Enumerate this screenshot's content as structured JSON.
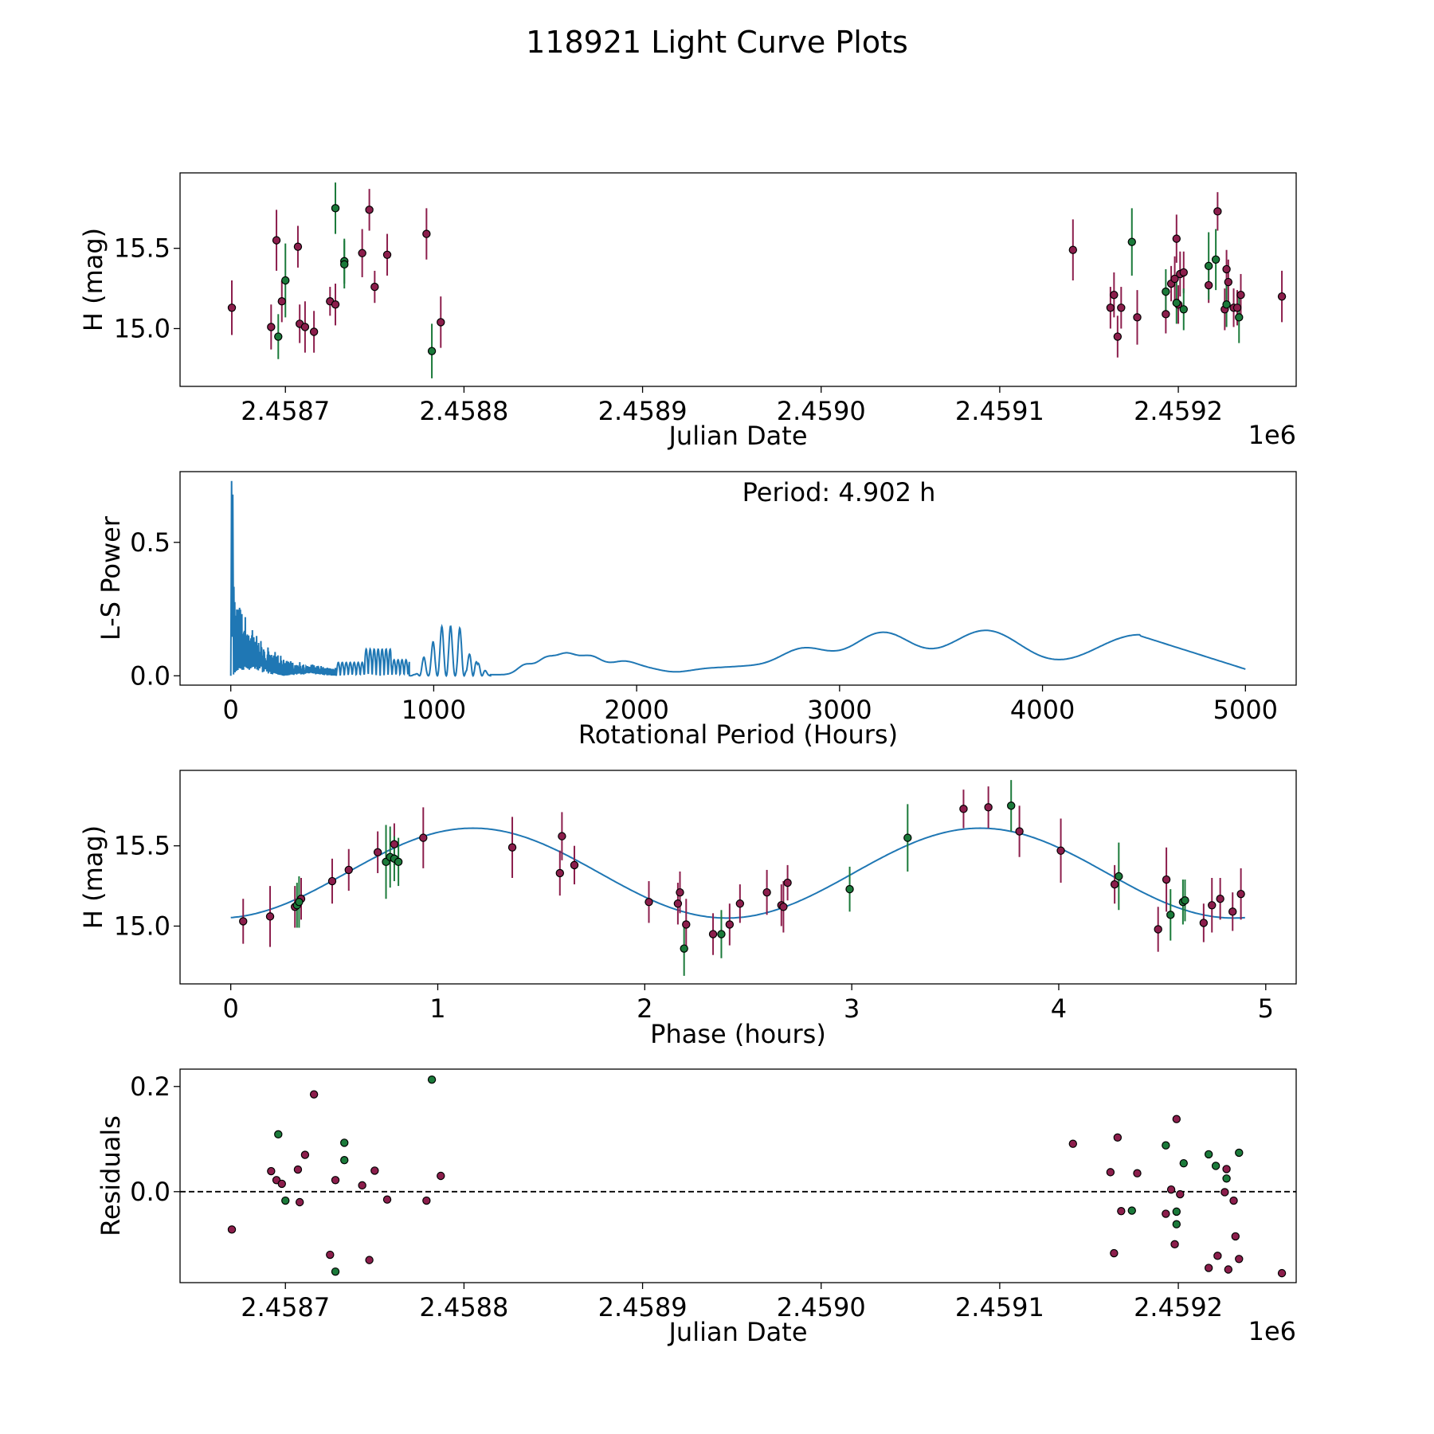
{
  "figure": {
    "title": "118921 Light Curve Plots"
  },
  "colors": {
    "maroon": "#8c1e4c",
    "green": "#1b7a3a",
    "curve": "#1f77b4",
    "edge": "#000000"
  },
  "chart_data": [
    {
      "id": "lightcurve",
      "type": "scatter",
      "title": "",
      "xlabel": "Julian Date",
      "ylabel": "H (mag)",
      "x_offset_label": "1e6",
      "xlim": [
        2458641,
        2459266
      ],
      "ylim": [
        14.64,
        15.97
      ],
      "xticks": [
        2458700,
        2458800,
        2458900,
        2459000,
        2459100,
        2459200
      ],
      "xtick_labels": [
        "2.4587",
        "2.4588",
        "2.4589",
        "2.4590",
        "2.4591",
        "2.4592"
      ],
      "yticks": [
        15.0,
        15.5
      ],
      "ytick_labels": [
        "15.0",
        "15.5"
      ],
      "series": [
        {
          "name": "maroon",
          "color": "maroon",
          "points": [
            [
              2458670,
              15.13,
              0.17
            ],
            [
              2458692,
              15.01,
              0.14
            ],
            [
              2458695,
              15.55,
              0.19
            ],
            [
              2458698,
              15.17,
              0.13
            ],
            [
              2458707,
              15.51,
              0.13
            ],
            [
              2458708,
              15.03,
              0.12
            ],
            [
              2458711,
              15.01,
              0.16
            ],
            [
              2458716,
              14.98,
              0.13
            ],
            [
              2458725,
              15.17,
              0.09
            ],
            [
              2458728,
              15.15,
              0.13
            ],
            [
              2458743,
              15.47,
              0.15
            ],
            [
              2458747,
              15.74,
              0.13
            ],
            [
              2458750,
              15.26,
              0.1
            ],
            [
              2458757,
              15.46,
              0.13
            ],
            [
              2458779,
              15.59,
              0.16
            ],
            [
              2458787,
              15.04,
              0.16
            ],
            [
              2459141,
              15.49,
              0.19
            ],
            [
              2459162,
              15.13,
              0.13
            ],
            [
              2459164,
              15.21,
              0.14
            ],
            [
              2459166,
              14.95,
              0.13
            ],
            [
              2459168,
              15.13,
              0.13
            ],
            [
              2459177,
              15.07,
              0.17
            ],
            [
              2459193,
              15.09,
              0.12
            ],
            [
              2459196,
              15.28,
              0.11
            ],
            [
              2459198,
              15.31,
              0.14
            ],
            [
              2459199,
              15.56,
              0.15
            ],
            [
              2459200,
              15.15,
              0.12
            ],
            [
              2459201,
              15.34,
              0.14
            ],
            [
              2459203,
              15.35,
              0.13
            ],
            [
              2459217,
              15.27,
              0.11
            ],
            [
              2459222,
              15.73,
              0.12
            ],
            [
              2459226,
              15.12,
              0.13
            ],
            [
              2459227,
              15.37,
              0.12
            ],
            [
              2459228,
              15.29,
              0.14
            ],
            [
              2459231,
              15.13,
              0.12
            ],
            [
              2459233,
              15.13,
              0.11
            ],
            [
              2459235,
              15.21,
              0.13
            ],
            [
              2459258,
              15.2,
              0.16
            ]
          ]
        },
        {
          "name": "green",
          "color": "green",
          "points": [
            [
              2458696,
              14.95,
              0.14
            ],
            [
              2458700,
              15.3,
              0.23
            ],
            [
              2458728,
              15.75,
              0.16
            ],
            [
              2458733,
              15.42,
              0.14
            ],
            [
              2458733,
              15.4,
              0.15
            ],
            [
              2458782,
              14.86,
              0.17
            ],
            [
              2459174,
              15.54,
              0.21
            ],
            [
              2459193,
              15.23,
              0.14
            ],
            [
              2459199,
              15.16,
              0.13
            ],
            [
              2459203,
              15.12,
              0.13
            ],
            [
              2459217,
              15.39,
              0.21
            ],
            [
              2459221,
              15.43,
              0.19
            ],
            [
              2459227,
              15.15,
              0.14
            ],
            [
              2459234,
              15.07,
              0.16
            ]
          ]
        }
      ]
    },
    {
      "id": "periodogram",
      "type": "line",
      "xlabel": "Rotational Period (Hours)",
      "ylabel": "L-S Power",
      "annotation": "Period: 4.902 h",
      "xlim": [
        -250,
        5250
      ],
      "ylim": [
        -0.035,
        0.765
      ],
      "xticks": [
        0,
        1000,
        2000,
        3000,
        4000,
        5000
      ],
      "xtick_labels": [
        "0",
        "1000",
        "2000",
        "3000",
        "4000",
        "5000"
      ],
      "yticks": [
        0.0,
        0.5
      ],
      "ytick_labels": [
        "0.0",
        "0.5"
      ],
      "x_range": [
        0,
        5000
      ],
      "peak_power": 0.73,
      "smooth_peaks": [
        [
          1450,
          0.035
        ],
        [
          1550,
          0.055
        ],
        [
          1650,
          0.07
        ],
        [
          1770,
          0.065
        ],
        [
          1930,
          0.045
        ],
        [
          2060,
          0.02
        ],
        [
          2330,
          0.018
        ],
        [
          2520,
          0.025
        ],
        [
          2820,
          0.095
        ],
        [
          3210,
          0.155
        ],
        [
          3720,
          0.165
        ],
        [
          4480,
          0.15
        ]
      ],
      "oscillation_peaks": [
        [
          950,
          0.07
        ],
        [
          1000,
          0.13
        ],
        [
          1040,
          0.185
        ],
        [
          1080,
          0.19
        ],
        [
          1130,
          0.18
        ],
        [
          1190,
          0.12
        ],
        [
          1230,
          0.06
        ]
      ],
      "end_value": [
        5000,
        0.025
      ]
    },
    {
      "id": "phasefold",
      "type": "scatter",
      "xlabel": "Phase (hours)",
      "ylabel": "H (mag)",
      "xlim": [
        -0.245,
        5.147
      ],
      "ylim": [
        14.64,
        15.97
      ],
      "xticks": [
        0,
        1,
        2,
        3,
        4,
        5
      ],
      "xtick_labels": [
        "0",
        "1",
        "2",
        "3",
        "4",
        "5"
      ],
      "yticks": [
        15.0,
        15.5
      ],
      "ytick_labels": [
        "15.0",
        "15.5"
      ],
      "model": {
        "mean": 15.33,
        "amplitude": 0.28,
        "period": 2.451,
        "peak_phase": 1.17,
        "x_range": [
          0,
          4.9
        ]
      },
      "series": [
        {
          "name": "maroon",
          "color": "maroon",
          "points": [
            [
              0.06,
              15.03,
              0.14
            ],
            [
              0.19,
              15.06,
              0.19
            ],
            [
              0.31,
              15.12,
              0.13
            ],
            [
              0.34,
              15.17,
              0.13
            ],
            [
              0.49,
              15.28,
              0.14
            ],
            [
              0.57,
              15.35,
              0.13
            ],
            [
              0.71,
              15.46,
              0.13
            ],
            [
              0.79,
              15.51,
              0.13
            ],
            [
              0.93,
              15.55,
              0.19
            ],
            [
              1.36,
              15.49,
              0.19
            ],
            [
              1.59,
              15.33,
              0.14
            ],
            [
              1.6,
              15.56,
              0.15
            ],
            [
              1.66,
              15.38,
              0.12
            ],
            [
              2.02,
              15.15,
              0.13
            ],
            [
              2.16,
              15.14,
              0.13
            ],
            [
              2.17,
              15.21,
              0.13
            ],
            [
              2.2,
              15.01,
              0.16
            ],
            [
              2.33,
              14.95,
              0.13
            ],
            [
              2.41,
              15.01,
              0.13
            ],
            [
              2.46,
              15.14,
              0.12
            ],
            [
              2.59,
              15.21,
              0.14
            ],
            [
              2.66,
              15.13,
              0.13
            ],
            [
              2.67,
              15.12,
              0.16
            ],
            [
              2.69,
              15.27,
              0.11
            ],
            [
              3.54,
              15.73,
              0.12
            ],
            [
              3.66,
              15.74,
              0.13
            ],
            [
              3.81,
              15.59,
              0.16
            ],
            [
              4.01,
              15.47,
              0.2
            ],
            [
              4.27,
              15.26,
              0.12
            ],
            [
              4.48,
              14.98,
              0.14
            ],
            [
              4.52,
              15.29,
              0.2
            ],
            [
              4.7,
              15.02,
              0.12
            ],
            [
              4.74,
              15.13,
              0.17
            ],
            [
              4.78,
              15.17,
              0.13
            ],
            [
              4.84,
              15.09,
              0.12
            ],
            [
              4.88,
              15.2,
              0.16
            ]
          ]
        },
        {
          "name": "green",
          "color": "green",
          "points": [
            [
              0.32,
              15.13,
              0.14
            ],
            [
              0.33,
              15.15,
              0.16
            ],
            [
              0.75,
              15.4,
              0.23
            ],
            [
              0.77,
              15.43,
              0.19
            ],
            [
              0.79,
              15.42,
              0.14
            ],
            [
              0.81,
              15.4,
              0.15
            ],
            [
              2.19,
              14.86,
              0.17
            ],
            [
              2.37,
              14.95,
              0.15
            ],
            [
              2.99,
              15.23,
              0.14
            ],
            [
              3.27,
              15.55,
              0.21
            ],
            [
              3.77,
              15.75,
              0.16
            ],
            [
              4.29,
              15.31,
              0.21
            ],
            [
              4.54,
              15.07,
              0.16
            ],
            [
              4.6,
              15.15,
              0.14
            ],
            [
              4.61,
              15.16,
              0.13
            ]
          ]
        }
      ]
    },
    {
      "id": "residuals",
      "type": "scatter",
      "xlabel": "Julian Date",
      "ylabel": "Residuals",
      "x_offset_label": "1e6",
      "xlim": [
        2458641,
        2459266
      ],
      "ylim": [
        -0.173,
        0.233
      ],
      "xticks": [
        2458700,
        2458800,
        2458900,
        2459000,
        2459100,
        2459200
      ],
      "xtick_labels": [
        "2.4587",
        "2.4588",
        "2.4589",
        "2.4590",
        "2.4591",
        "2.4592"
      ],
      "yticks": [
        0.0,
        0.2
      ],
      "ytick_labels": [
        "0.0",
        "0.2"
      ],
      "zero_line": 0.0,
      "series": [
        {
          "name": "maroon",
          "color": "maroon",
          "points": [
            [
              2458670,
              -0.072
            ],
            [
              2458692,
              0.039
            ],
            [
              2458695,
              0.022
            ],
            [
              2458698,
              0.015
            ],
            [
              2458707,
              0.042
            ],
            [
              2458708,
              -0.02
            ],
            [
              2458711,
              0.07
            ],
            [
              2458716,
              0.185
            ],
            [
              2458725,
              -0.12
            ],
            [
              2458728,
              0.022
            ],
            [
              2458743,
              0.012
            ],
            [
              2458747,
              -0.13
            ],
            [
              2458750,
              0.04
            ],
            [
              2458757,
              -0.015
            ],
            [
              2458779,
              -0.017
            ],
            [
              2458787,
              0.03
            ],
            [
              2459141,
              0.091
            ],
            [
              2459162,
              0.037
            ],
            [
              2459164,
              -0.117
            ],
            [
              2459166,
              0.103
            ],
            [
              2459168,
              -0.037
            ],
            [
              2459177,
              0.035
            ],
            [
              2459193,
              -0.042
            ],
            [
              2459196,
              0.004
            ],
            [
              2459198,
              -0.1
            ],
            [
              2459199,
              0.138
            ],
            [
              2459201,
              -0.005
            ],
            [
              2459217,
              -0.145
            ],
            [
              2459222,
              -0.122
            ],
            [
              2459226,
              -0.001
            ],
            [
              2459227,
              0.043
            ],
            [
              2459228,
              -0.148
            ],
            [
              2459231,
              -0.017
            ],
            [
              2459232,
              -0.085
            ],
            [
              2459234,
              -0.128
            ],
            [
              2459258,
              -0.155
            ]
          ]
        },
        {
          "name": "green",
          "color": "green",
          "points": [
            [
              2458696,
              0.109
            ],
            [
              2458700,
              -0.017
            ],
            [
              2458728,
              -0.152
            ],
            [
              2458733,
              0.093
            ],
            [
              2458733,
              0.06
            ],
            [
              2458782,
              0.213
            ],
            [
              2459174,
              -0.036
            ],
            [
              2459193,
              0.088
            ],
            [
              2459199,
              -0.038
            ],
            [
              2459199,
              -0.062
            ],
            [
              2459203,
              0.054
            ],
            [
              2459217,
              0.071
            ],
            [
              2459221,
              0.049
            ],
            [
              2459227,
              0.025
            ],
            [
              2459234,
              0.074
            ]
          ]
        }
      ]
    }
  ]
}
